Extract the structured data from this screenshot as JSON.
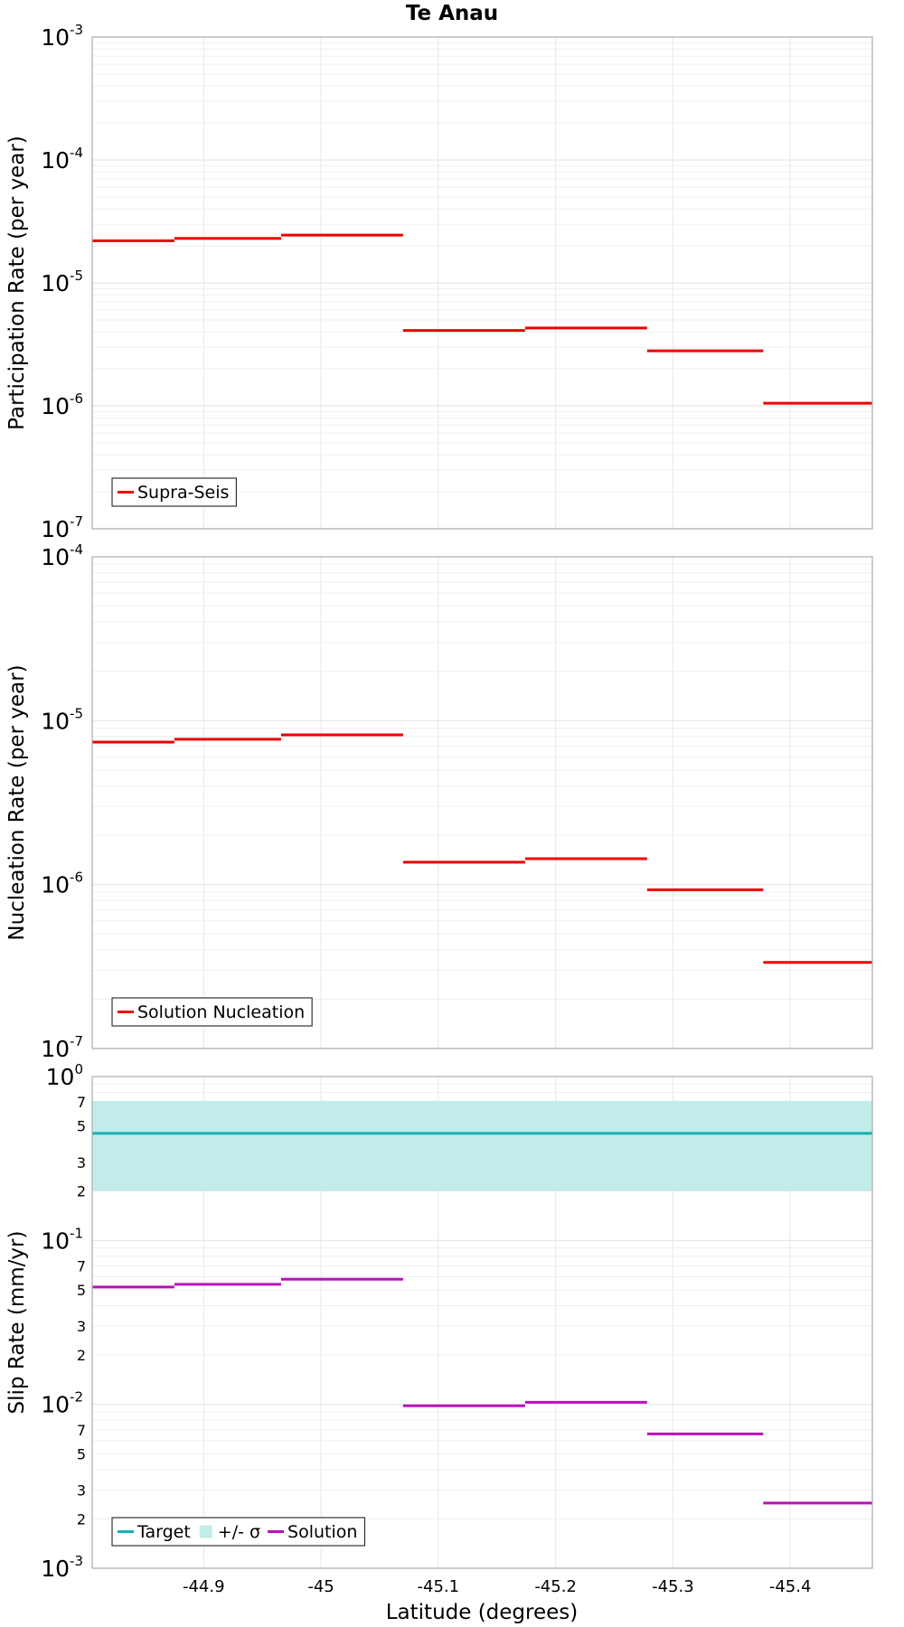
{
  "title": "Te Anau",
  "xlabel": "Latitude (degrees)",
  "colors": {
    "red": "#ee0000",
    "target": "#16b0b0",
    "band": "#c2ecea",
    "solution": "#bb11bb"
  },
  "chart_data": [
    {
      "type": "line",
      "ylabel": "Participation Rate (per year)",
      "yscale": "log",
      "ylim": [
        "1e-7",
        "1e-3"
      ],
      "y_tick_labels": [
        {
          "base": "10",
          "exp": "-3"
        },
        {
          "base": "10",
          "exp": "-4"
        },
        {
          "base": "10",
          "exp": "-5"
        },
        {
          "base": "10",
          "exp": "-6"
        },
        {
          "base": "10",
          "exp": "-7"
        }
      ],
      "series": [
        {
          "name": "Supra-Seis",
          "color": "#ee0000",
          "segments": [
            {
              "x0": -44.805,
              "x1": -44.875,
              "y": 2.2e-05
            },
            {
              "x0": -44.875,
              "x1": -44.966,
              "y": 2.3e-05
            },
            {
              "x0": -44.966,
              "x1": -45.07,
              "y": 2.45e-05
            },
            {
              "x0": -45.07,
              "x1": -45.174,
              "y": 4.1e-06
            },
            {
              "x0": -45.174,
              "x1": -45.278,
              "y": 4.3e-06
            },
            {
              "x0": -45.278,
              "x1": -45.377,
              "y": 2.8e-06
            },
            {
              "x0": -45.377,
              "x1": -45.47,
              "y": 1.05e-06
            }
          ]
        }
      ],
      "legend": {
        "position": "bottom-left",
        "entries": [
          {
            "label": "Supra-Seis",
            "kind": "line",
            "color": "#ee0000"
          }
        ]
      }
    },
    {
      "type": "line",
      "ylabel": "Nucleation Rate (per year)",
      "yscale": "log",
      "ylim": [
        "1e-7",
        "1e-4"
      ],
      "y_tick_labels": [
        {
          "base": "10",
          "exp": "-4"
        },
        {
          "base": "10",
          "exp": "-5"
        },
        {
          "base": "10",
          "exp": "-6"
        },
        {
          "base": "10",
          "exp": "-7"
        }
      ],
      "series": [
        {
          "name": "Solution Nucleation",
          "color": "#ee0000",
          "segments": [
            {
              "x0": -44.805,
              "x1": -44.875,
              "y": 7.4e-06
            },
            {
              "x0": -44.875,
              "x1": -44.966,
              "y": 7.7e-06
            },
            {
              "x0": -44.966,
              "x1": -45.07,
              "y": 8.2e-06
            },
            {
              "x0": -45.07,
              "x1": -45.174,
              "y": 1.37e-06
            },
            {
              "x0": -45.174,
              "x1": -45.278,
              "y": 1.44e-06
            },
            {
              "x0": -45.278,
              "x1": -45.377,
              "y": 9.3e-07
            },
            {
              "x0": -45.377,
              "x1": -45.47,
              "y": 3.35e-07
            }
          ]
        }
      ],
      "legend": {
        "position": "bottom-left",
        "entries": [
          {
            "label": "Solution Nucleation",
            "kind": "line",
            "color": "#ee0000"
          }
        ]
      }
    },
    {
      "type": "line",
      "ylabel": "Slip Rate (mm/yr)",
      "yscale": "log",
      "ylim": [
        "1e-3",
        "1e0"
      ],
      "y_tick_labels": [
        {
          "base": "10",
          "exp": "0"
        },
        {
          "base": "10",
          "exp": "-1"
        },
        {
          "base": "10",
          "exp": "-2"
        },
        {
          "base": "10",
          "exp": "-3"
        }
      ],
      "y_minor_labels": [
        {
          "label": "7",
          "value": 0.7
        },
        {
          "label": "5",
          "value": 0.5
        },
        {
          "label": "3",
          "value": 0.3
        },
        {
          "label": "2",
          "value": 0.2
        },
        {
          "label": "7",
          "value": 0.07
        },
        {
          "label": "5",
          "value": 0.05
        },
        {
          "label": "3",
          "value": 0.03
        },
        {
          "label": "2",
          "value": 0.02
        },
        {
          "label": "7",
          "value": 0.007
        },
        {
          "label": "5",
          "value": 0.005
        },
        {
          "label": "3",
          "value": 0.003
        },
        {
          "label": "2",
          "value": 0.002
        }
      ],
      "band": {
        "name": "+/- σ",
        "color": "#c2ecea",
        "x0": -44.805,
        "x1": -45.47,
        "low": 0.2,
        "high": 0.71
      },
      "series": [
        {
          "name": "Target",
          "color": "#16b0b0",
          "segments": [
            {
              "x0": -44.805,
              "x1": -45.47,
              "y": 0.45
            }
          ]
        },
        {
          "name": "Solution",
          "color": "#bb11bb",
          "segments": [
            {
              "x0": -44.805,
              "x1": -44.875,
              "y": 0.052
            },
            {
              "x0": -44.875,
              "x1": -44.966,
              "y": 0.054
            },
            {
              "x0": -44.966,
              "x1": -45.07,
              "y": 0.058
            },
            {
              "x0": -45.07,
              "x1": -45.174,
              "y": 0.0098
            },
            {
              "x0": -45.174,
              "x1": -45.278,
              "y": 0.0103
            },
            {
              "x0": -45.278,
              "x1": -45.377,
              "y": 0.0066
            },
            {
              "x0": -45.377,
              "x1": -45.47,
              "y": 0.0025
            }
          ]
        }
      ],
      "legend": {
        "position": "bottom-left",
        "entries": [
          {
            "label": "Target",
            "kind": "line",
            "color": "#16b0b0"
          },
          {
            "label": "+/- σ",
            "kind": "swatch",
            "color": "#c2ecea"
          },
          {
            "label": "Solution",
            "kind": "line",
            "color": "#bb11bb"
          }
        ]
      }
    }
  ],
  "x_axis": {
    "xlim": [
      -44.805,
      -45.47
    ],
    "ticks": [
      {
        "value": -44.9,
        "label": "-44.9"
      },
      {
        "value": -45.0,
        "label": "-45"
      },
      {
        "value": -45.1,
        "label": "-45.1"
      },
      {
        "value": -45.2,
        "label": "-45.2"
      },
      {
        "value": -45.3,
        "label": "-45.3"
      },
      {
        "value": -45.4,
        "label": "-45.4"
      }
    ]
  }
}
